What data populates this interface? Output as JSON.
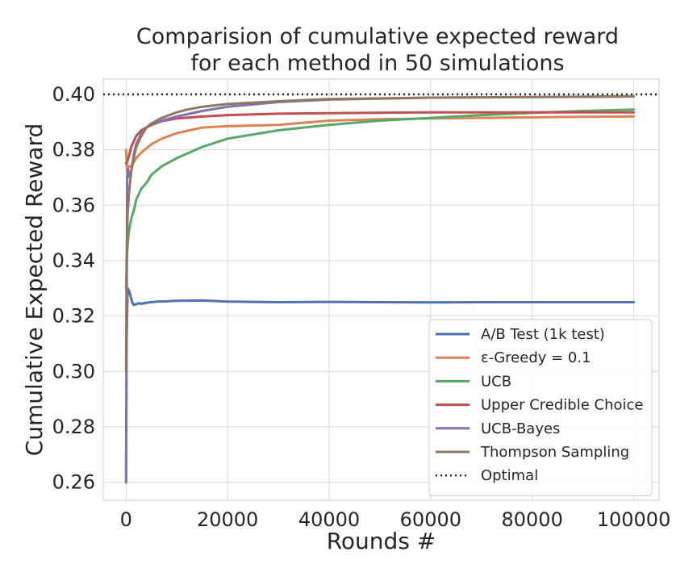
{
  "chart_data": {
    "type": "line",
    "title": "Comparision of cumulative expected reward\nfor each method in 50 simulations",
    "xlabel": "Rounds #",
    "ylabel": "Cumulative Expected Reward",
    "xlim": [
      -4500,
      105000
    ],
    "ylim": [
      0.2535,
      0.4055
    ],
    "xticks": [
      0,
      20000,
      40000,
      60000,
      80000,
      100000
    ],
    "xtick_labels": [
      "0",
      "20000",
      "40000",
      "60000",
      "80000",
      "100000"
    ],
    "yticks": [
      0.26,
      0.28,
      0.3,
      0.32,
      0.34,
      0.36,
      0.38,
      0.4
    ],
    "ytick_labels": [
      "0.26",
      "0.28",
      "0.30",
      "0.32",
      "0.34",
      "0.36",
      "0.38",
      "0.40"
    ],
    "grid": true,
    "legend_position": "lower-right",
    "series": [
      {
        "name": "A/B Test (1k test)",
        "color": "#4c72b0",
        "style": "solid",
        "x": [
          0,
          100,
          300,
          600,
          900,
          1200,
          1500,
          2000,
          2500,
          3000,
          4000,
          5000,
          6000,
          8000,
          10000,
          15000,
          20000,
          30000,
          40000,
          50000,
          60000,
          70000,
          80000,
          90000,
          100000
        ],
        "y": [
          0.26,
          0.31,
          0.33,
          0.329,
          0.327,
          0.325,
          0.324,
          0.3243,
          0.3246,
          0.3244,
          0.3248,
          0.325,
          0.3252,
          0.3253,
          0.3255,
          0.3256,
          0.3252,
          0.325,
          0.3251,
          0.325,
          0.3249,
          0.325,
          0.325,
          0.325,
          0.325
        ]
      },
      {
        "name": "ε-Greedy = 0.1",
        "color": "#dd8452",
        "style": "solid",
        "x": [
          0,
          200,
          500,
          1000,
          2000,
          3000,
          5000,
          7000,
          10000,
          15000,
          20000,
          30000,
          40000,
          50000,
          60000,
          70000,
          80000,
          90000,
          100000
        ],
        "y": [
          0.38,
          0.372,
          0.374,
          0.374,
          0.377,
          0.379,
          0.382,
          0.384,
          0.386,
          0.388,
          0.3885,
          0.389,
          0.3905,
          0.391,
          0.3913,
          0.3915,
          0.3917,
          0.3919,
          0.392
        ]
      },
      {
        "name": "UCB",
        "color": "#55a868",
        "style": "solid",
        "x": [
          0,
          200,
          500,
          1000,
          1500,
          2000,
          3000,
          4000,
          5000,
          7000,
          10000,
          15000,
          20000,
          30000,
          40000,
          50000,
          60000,
          70000,
          80000,
          90000,
          100000
        ],
        "y": [
          0.33,
          0.343,
          0.35,
          0.355,
          0.358,
          0.362,
          0.366,
          0.368,
          0.371,
          0.374,
          0.377,
          0.381,
          0.384,
          0.387,
          0.389,
          0.3905,
          0.3915,
          0.3925,
          0.3933,
          0.394,
          0.3945
        ]
      },
      {
        "name": "Upper Credible Choice",
        "color": "#c44e52",
        "style": "solid",
        "x": [
          0,
          300,
          600,
          1000,
          2000,
          3000,
          5000,
          7000,
          10000,
          15000,
          20000,
          30000,
          40000,
          60000,
          80000,
          100000
        ],
        "y": [
          0.375,
          0.376,
          0.378,
          0.381,
          0.385,
          0.387,
          0.389,
          0.3903,
          0.3913,
          0.392,
          0.3925,
          0.393,
          0.3932,
          0.3935,
          0.3935,
          0.3935
        ]
      },
      {
        "name": "UCB-Bayes",
        "color": "#8172b3",
        "style": "solid",
        "x": [
          0,
          100,
          200,
          400,
          700,
          1000,
          1500,
          2000,
          3000,
          4000,
          5000,
          7000,
          10000,
          15000,
          20000,
          30000,
          40000,
          60000,
          80000,
          100000
        ],
        "y": [
          0.26,
          0.31,
          0.37,
          0.373,
          0.37,
          0.372,
          0.378,
          0.382,
          0.386,
          0.388,
          0.3895,
          0.3905,
          0.392,
          0.394,
          0.3955,
          0.3972,
          0.3981,
          0.3988,
          0.399,
          0.3992
        ]
      },
      {
        "name": "Thompson Sampling",
        "color": "#937860",
        "style": "solid",
        "x": [
          0,
          100,
          300,
          600,
          1000,
          1500,
          2000,
          3000,
          4000,
          5000,
          7000,
          10000,
          12000,
          15000,
          20000,
          30000,
          40000,
          60000,
          80000,
          100000
        ],
        "y": [
          0.3,
          0.34,
          0.357,
          0.365,
          0.372,
          0.377,
          0.381,
          0.385,
          0.388,
          0.3895,
          0.3915,
          0.3935,
          0.3945,
          0.3955,
          0.3965,
          0.3975,
          0.3983,
          0.3988,
          0.399,
          0.3993
        ]
      },
      {
        "name": "Optimal",
        "color": "#262626",
        "style": "dotted",
        "x": [
          -4500,
          105000
        ],
        "y": [
          0.4,
          0.4
        ]
      }
    ]
  }
}
